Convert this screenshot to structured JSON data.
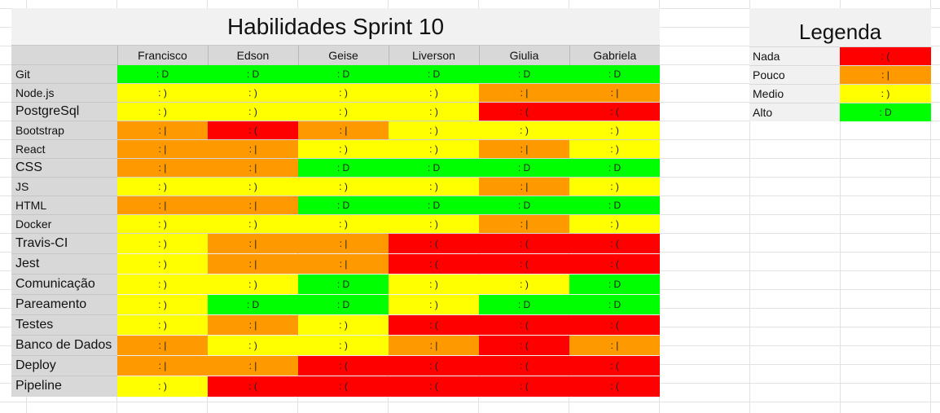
{
  "title": "Habilidades Sprint 10",
  "colors": {
    "Nada": "#ff0000",
    "Pouco": "#ff9900",
    "Medio": "#ffff00",
    "Alto": "#00ff00"
  },
  "levels": [
    "Nada",
    "Pouco",
    "Medio",
    "Alto"
  ],
  "faces": {
    "Nada": ": (",
    "Pouco": ": |",
    "Medio": ": )",
    "Alto": ": D"
  },
  "people": [
    "Francisco",
    "Edson",
    "Geise",
    "Liverson",
    "Giulia",
    "Gabriela"
  ],
  "rows": [
    {
      "skill": "Git",
      "levels": [
        "Alto",
        "Alto",
        "Alto",
        "Alto",
        "Alto",
        "Alto"
      ]
    },
    {
      "skill": "Node.js",
      "levels": [
        "Medio",
        "Medio",
        "Medio",
        "Medio",
        "Pouco",
        "Pouco"
      ]
    },
    {
      "skill": "PostgreSql",
      "levels": [
        "Medio",
        "Medio",
        "Medio",
        "Medio",
        "Nada",
        "Nada"
      ]
    },
    {
      "skill": "Bootstrap",
      "levels": [
        "Pouco",
        "Nada",
        "Pouco",
        "Medio",
        "Medio",
        "Medio"
      ]
    },
    {
      "skill": "React",
      "levels": [
        "Pouco",
        "Pouco",
        "Medio",
        "Medio",
        "Pouco",
        "Medio"
      ]
    },
    {
      "skill": "CSS",
      "levels": [
        "Pouco",
        "Pouco",
        "Alto",
        "Alto",
        "Alto",
        "Alto"
      ]
    },
    {
      "skill": "JS",
      "levels": [
        "Medio",
        "Medio",
        "Medio",
        "Medio",
        "Pouco",
        "Medio"
      ]
    },
    {
      "skill": "HTML",
      "levels": [
        "Pouco",
        "Pouco",
        "Alto",
        "Alto",
        "Alto",
        "Alto"
      ]
    },
    {
      "skill": "Docker",
      "levels": [
        "Medio",
        "Medio",
        "Medio",
        "Medio",
        "Pouco",
        "Medio"
      ]
    },
    {
      "skill": "Travis-CI",
      "levels": [
        "Medio",
        "Pouco",
        "Pouco",
        "Nada",
        "Nada",
        "Nada"
      ]
    },
    {
      "skill": "Jest",
      "levels": [
        "Medio",
        "Pouco",
        "Pouco",
        "Nada",
        "Nada",
        "Nada"
      ]
    },
    {
      "skill": "Comunicação",
      "levels": [
        "Medio",
        "Medio",
        "Alto",
        "Medio",
        "Medio",
        "Alto"
      ]
    },
    {
      "skill": "Pareamento",
      "levels": [
        "Medio",
        "Alto",
        "Alto",
        "Medio",
        "Alto",
        "Alto"
      ]
    },
    {
      "skill": "Testes",
      "levels": [
        "Medio",
        "Pouco",
        "Medio",
        "Nada",
        "Nada",
        "Nada"
      ]
    },
    {
      "skill": "Banco de Dados",
      "levels": [
        "Pouco",
        "Medio",
        "Medio",
        "Pouco",
        "Nada",
        "Pouco"
      ]
    },
    {
      "skill": "Deploy",
      "levels": [
        "Pouco",
        "Pouco",
        "Nada",
        "Nada",
        "Nada",
        "Nada"
      ]
    },
    {
      "skill": "Pipeline",
      "levels": [
        "Medio",
        "Nada",
        "Nada",
        "Nada",
        "Nada",
        "Nada"
      ]
    }
  ],
  "legend": {
    "title": "Legenda",
    "items": [
      {
        "label": "Nada",
        "level": "Nada"
      },
      {
        "label": "Pouco",
        "level": "Pouco"
      },
      {
        "label": "Medio",
        "level": "Medio"
      },
      {
        "label": "Alto",
        "level": "Alto"
      }
    ]
  }
}
